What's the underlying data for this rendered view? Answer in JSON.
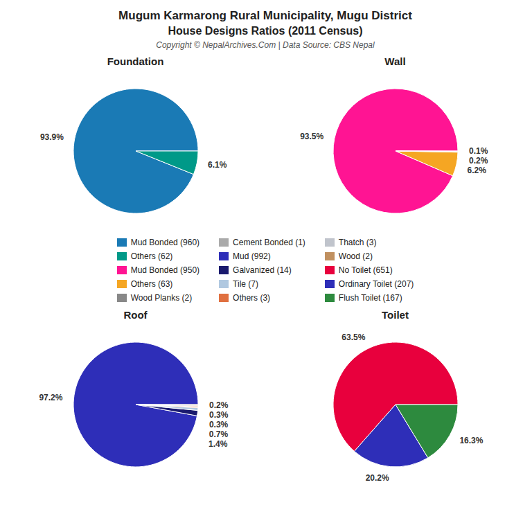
{
  "title": "Mugum Karmarong Rural Municipality, Mugu District",
  "subtitle": "House Designs Ratios (2011 Census)",
  "annotations": [
    "Copyright © NepalArchives.Com | Data Source: CBS Nepal"
  ],
  "chart_data": [
    {
      "type": "pie",
      "title": "Foundation",
      "categories": [
        "Mud Bonded (960)",
        "Others (62)"
      ],
      "values": [
        93.9,
        6.1
      ],
      "value_labels": [
        "93.9%",
        "6.1%"
      ],
      "colors": [
        "#1a7ab5",
        "#009988"
      ],
      "data_labels": true,
      "legend": "center"
    },
    {
      "type": "pie",
      "title": "Wall",
      "categories": [
        "Mud Bonded (950)",
        "Others (63)",
        "Wood Planks (2)",
        "Cement Bonded (1)"
      ],
      "values": [
        93.5,
        6.2,
        0.2,
        0.1
      ],
      "value_labels": [
        "93.5%",
        "6.2%",
        "0.2%",
        "0.1%"
      ],
      "colors": [
        "#ff1493",
        "#f5a623",
        "#888888",
        "#aaaaaa"
      ],
      "data_labels": true,
      "legend": "center"
    },
    {
      "type": "pie",
      "title": "Roof",
      "categories": [
        "Mud (992)",
        "Galvanized (14)",
        "Tile (7)",
        "Others (3)",
        "Thatch (3)",
        "Wood (2)"
      ],
      "values": [
        97.2,
        1.4,
        0.7,
        0.3,
        0.3,
        0.2
      ],
      "value_labels": [
        "97.2%",
        "1.4%",
        "0.7%",
        "0.3%",
        "0.3%",
        "0.2%"
      ],
      "colors": [
        "#2e2eb8",
        "#1a1a6e",
        "#b0c8e0",
        "#e07040",
        "#c0c4cc",
        "#c09060"
      ],
      "data_labels": true,
      "legend": "center"
    },
    {
      "type": "pie",
      "title": "Toilet",
      "categories": [
        "No Toilet (651)",
        "Ordinary Toilet (207)",
        "Flush Toilet (167)"
      ],
      "values": [
        63.5,
        20.2,
        16.3
      ],
      "value_labels": [
        "63.5%",
        "20.2%",
        "16.3%"
      ],
      "colors": [
        "#e8003d",
        "#2e2eb8",
        "#2d8a3e"
      ],
      "data_labels": true,
      "legend": "center"
    }
  ]
}
